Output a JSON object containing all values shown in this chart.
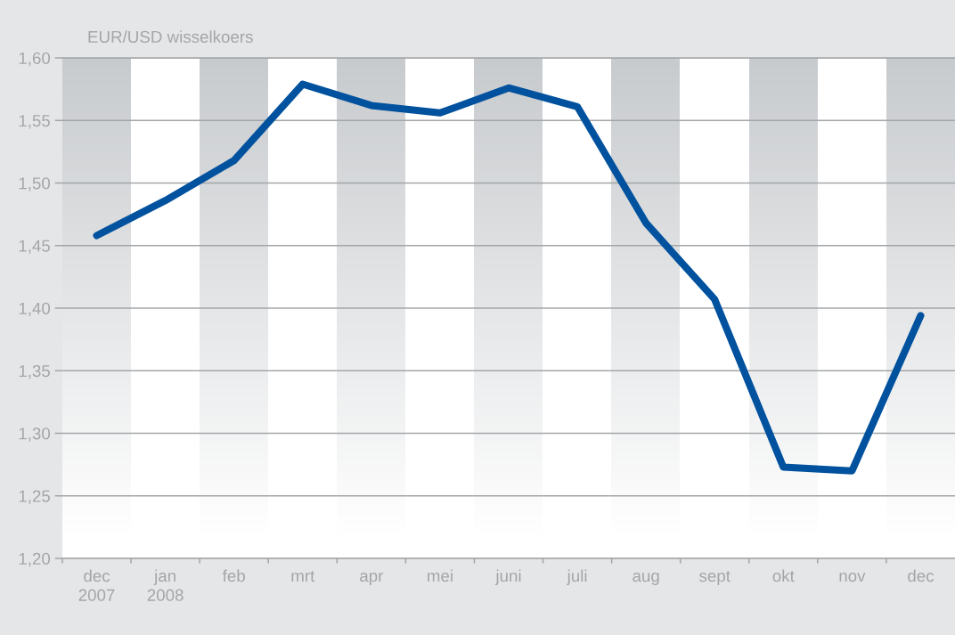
{
  "chart_data": {
    "type": "line",
    "title": "EUR/USD wisselkoers",
    "categories": [
      "dec\n2007",
      "jan\n2008",
      "feb",
      "mrt",
      "apr",
      "mei",
      "juni",
      "juli",
      "aug",
      "sept",
      "okt",
      "nov",
      "dec"
    ],
    "series": [
      {
        "color": "#00519e",
        "values": [
          1.458,
          1.486,
          1.518,
          1.579,
          1.562,
          1.556,
          1.576,
          1.561,
          1.468,
          1.407,
          1.273,
          1.27,
          1.394
        ]
      }
    ],
    "ylim": [
      1.2,
      1.6
    ],
    "yticks": [
      {
        "value": 1.2,
        "label": "1,20"
      },
      {
        "value": 1.25,
        "label": "1,25"
      },
      {
        "value": 1.3,
        "label": "1,30"
      },
      {
        "value": 1.35,
        "label": "1,35"
      },
      {
        "value": 1.4,
        "label": "1,40"
      },
      {
        "value": 1.45,
        "label": "1,45"
      },
      {
        "value": 1.5,
        "label": "1,50"
      },
      {
        "value": 1.55,
        "label": "1,55"
      },
      {
        "value": 1.6,
        "label": "1,60"
      }
    ],
    "grid": "y",
    "line_style": "solid"
  }
}
